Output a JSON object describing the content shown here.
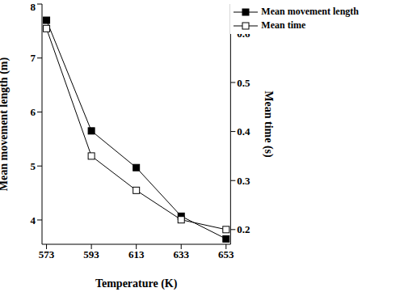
{
  "chart_data": {
    "type": "line",
    "x": [
      573,
      593,
      613,
      633,
      653
    ],
    "xlim": [
      571,
      655
    ],
    "xticks": [
      573,
      593,
      613,
      633,
      653
    ],
    "x_label": "Temperature (K)",
    "y_label": "Mean movement length (m)",
    "y2_label": "Mean time (s)",
    "ylim": [
      3.55,
      8
    ],
    "yticks": [
      4,
      5,
      6,
      7,
      8
    ],
    "y2lim": [
      0.17,
      0.66
    ],
    "y2ticks": [
      0.2,
      0.3,
      0.4,
      0.5,
      0.6
    ],
    "legend": "top-right",
    "grid": false,
    "series": [
      {
        "name": "Mean movement length",
        "color": "#000000",
        "marker": "square",
        "line_style": "solid",
        "values": [
          7.7,
          5.65,
          4.97,
          4.07,
          3.65
        ]
      },
      {
        "name": "Mean time",
        "color": "#000000",
        "marker": "open_square",
        "line_style": "solid",
        "axis": "y2",
        "values": [
          0.61,
          0.35,
          0.28,
          0.22,
          0.2
        ]
      }
    ]
  }
}
